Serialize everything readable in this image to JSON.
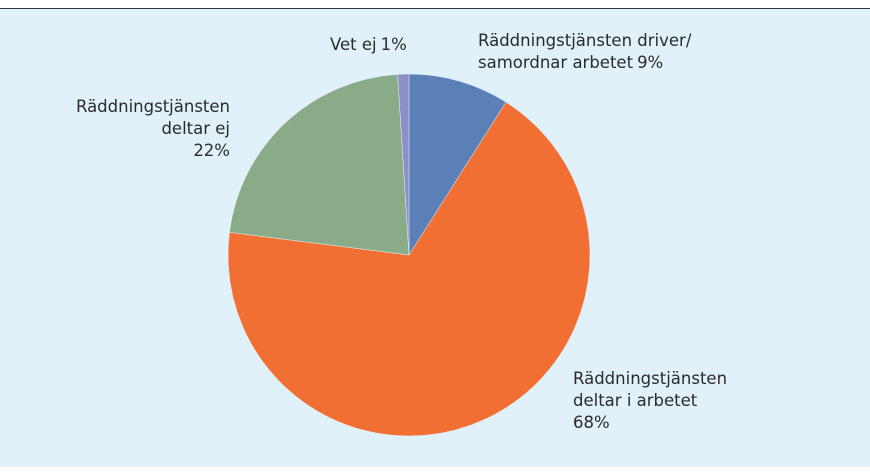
{
  "chart_data": {
    "type": "pie",
    "categories": [
      "Räddningstjänsten driver/ samordnar arbetet",
      "Räddningstjänsten deltar i arbetet",
      "Räddningstjänsten deltar ej",
      "Vet ej"
    ],
    "values": [
      9,
      68,
      22,
      1
    ],
    "value_labels": [
      "9%",
      "68%",
      "22%",
      "1%"
    ],
    "colors": [
      "#5b80b8",
      "#f26f33",
      "#8aab88",
      "#8d8fc9"
    ]
  }
}
